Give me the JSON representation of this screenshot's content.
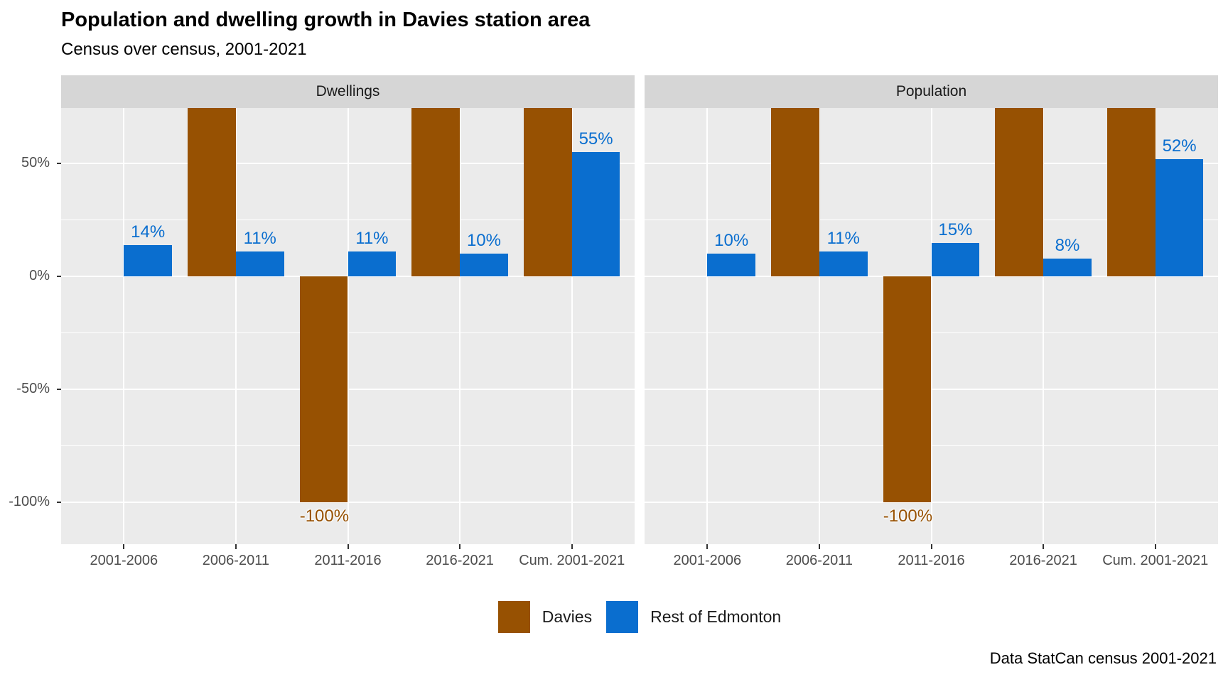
{
  "chart_data": {
    "type": "bar",
    "title": "Population and dwelling growth in Davies station area",
    "subtitle": "Census over census, 2001-2021",
    "caption": "Data StatCan census 2001-2021",
    "categories": [
      "2001-2006",
      "2006-2011",
      "2011-2016",
      "2016-2021",
      "Cum. 2001-2021"
    ],
    "facets": [
      {
        "label": "Dwellings",
        "series": [
          {
            "name": "Davies",
            "values": [
              null,
              null,
              -100,
              null,
              null
            ],
            "clipped_above": [
              false,
              true,
              false,
              true,
              true
            ],
            "labels": [
              "",
              "",
              "-100%",
              "",
              ""
            ]
          },
          {
            "name": "Rest of Edmonton",
            "values": [
              14,
              11,
              11,
              10,
              55
            ],
            "clipped_above": [
              false,
              false,
              false,
              false,
              false
            ],
            "labels": [
              "14%",
              "11%",
              "11%",
              "10%",
              "55%"
            ]
          }
        ]
      },
      {
        "label": "Population",
        "series": [
          {
            "name": "Davies",
            "values": [
              null,
              null,
              -100,
              null,
              null
            ],
            "clipped_above": [
              false,
              true,
              false,
              true,
              true
            ],
            "labels": [
              "",
              "",
              "-100%",
              "",
              ""
            ]
          },
          {
            "name": "Rest of Edmonton",
            "values": [
              10,
              11,
              15,
              8,
              52
            ],
            "clipped_above": [
              false,
              false,
              false,
              false,
              false
            ],
            "labels": [
              "10%",
              "11%",
              "15%",
              "8%",
              "52%"
            ]
          }
        ]
      }
    ],
    "legend": {
      "position": "bottom",
      "entries": [
        "Davies",
        "Rest of Edmonton"
      ]
    },
    "colors": {
      "Davies": "#975102",
      "Rest of Edmonton": "#0a6ecf"
    },
    "y_axis": {
      "tick_labels": [
        "50%",
        "0%",
        "-50%",
        "-100%"
      ],
      "tick_values": [
        50,
        0,
        -50,
        -100
      ],
      "minor_tick_values": [
        25,
        -25,
        -75
      ],
      "ylim": [
        -118.5,
        74.6
      ]
    },
    "grid": true
  }
}
